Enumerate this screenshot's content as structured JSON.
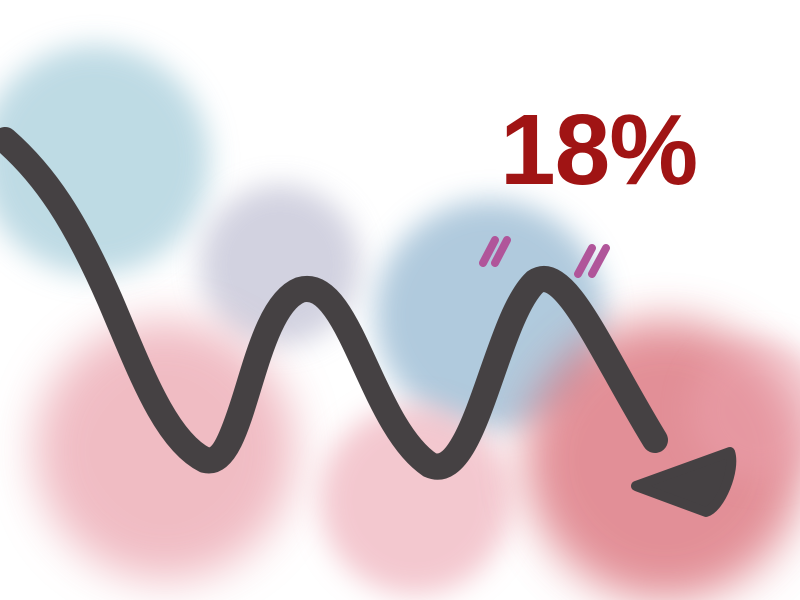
{
  "headline": {
    "text": "18%",
    "color": "#a01414"
  },
  "palette": {
    "blue_wash": "#a9cfdc",
    "lavender_wash": "#c3c3d6",
    "steel_wash": "#8fb4cf",
    "pink_wash": "#eaa0ab",
    "rose_wash": "#f0b6c0",
    "red_wash": "#d96a74",
    "arrow_stroke": "#454143",
    "tick_marks": "#b0559a"
  },
  "graphic": {
    "arrow_icon": "zigzag-down-arrow-icon",
    "tick_icon": "double-tick-marks-icon"
  }
}
